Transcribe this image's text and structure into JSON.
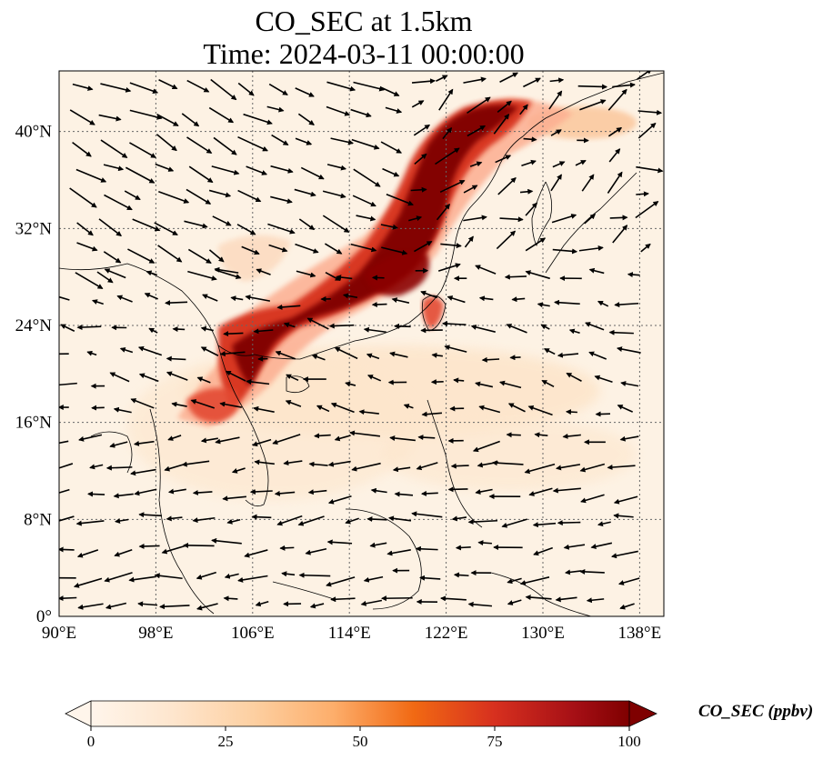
{
  "title": {
    "line1": "CO_SEC at 1.5km",
    "line2": "Time: 2024-03-11 00:00:00"
  },
  "map": {
    "projection": "PlateCarree",
    "lon_range": [
      90,
      140
    ],
    "lat_range": [
      0,
      45
    ],
    "gridlines": "dotted",
    "lon_ticks": [
      {
        "value": 90,
        "label": "90°E"
      },
      {
        "value": 98,
        "label": "98°E"
      },
      {
        "value": 106,
        "label": "106°E"
      },
      {
        "value": 114,
        "label": "114°E"
      },
      {
        "value": 122,
        "label": "122°E"
      },
      {
        "value": 130,
        "label": "130°E"
      },
      {
        "value": 138,
        "label": "138°E"
      }
    ],
    "lat_ticks": [
      {
        "value": 0,
        "label": "0°"
      },
      {
        "value": 8,
        "label": "8°N"
      },
      {
        "value": 16,
        "label": "16°N"
      },
      {
        "value": 24,
        "label": "24°N"
      },
      {
        "value": 32,
        "label": "32°N"
      },
      {
        "value": 40,
        "label": "40°N"
      }
    ],
    "field_colormap": [
      "#fff5eb",
      "#fee6ce",
      "#fdd0a2",
      "#fdae6b",
      "#fd8d3c",
      "#f16913",
      "#d94801",
      "#a63603",
      "#7f0000"
    ],
    "plume_description_colors": {
      "low": "#fff5eb",
      "mid": "#fdbb84",
      "high": "#d7301f",
      "max": "#7f0000"
    },
    "wind_vectors": "black quiver arrows"
  },
  "colorbar": {
    "label": "CO_SEC (ppbv)",
    "min": 0,
    "max": 100,
    "extend": "both",
    "ticks": [
      {
        "value": 0,
        "label": "0"
      },
      {
        "value": 25,
        "label": "25"
      },
      {
        "value": 50,
        "label": "50"
      },
      {
        "value": 75,
        "label": "75"
      },
      {
        "value": 100,
        "label": "100"
      }
    ]
  }
}
